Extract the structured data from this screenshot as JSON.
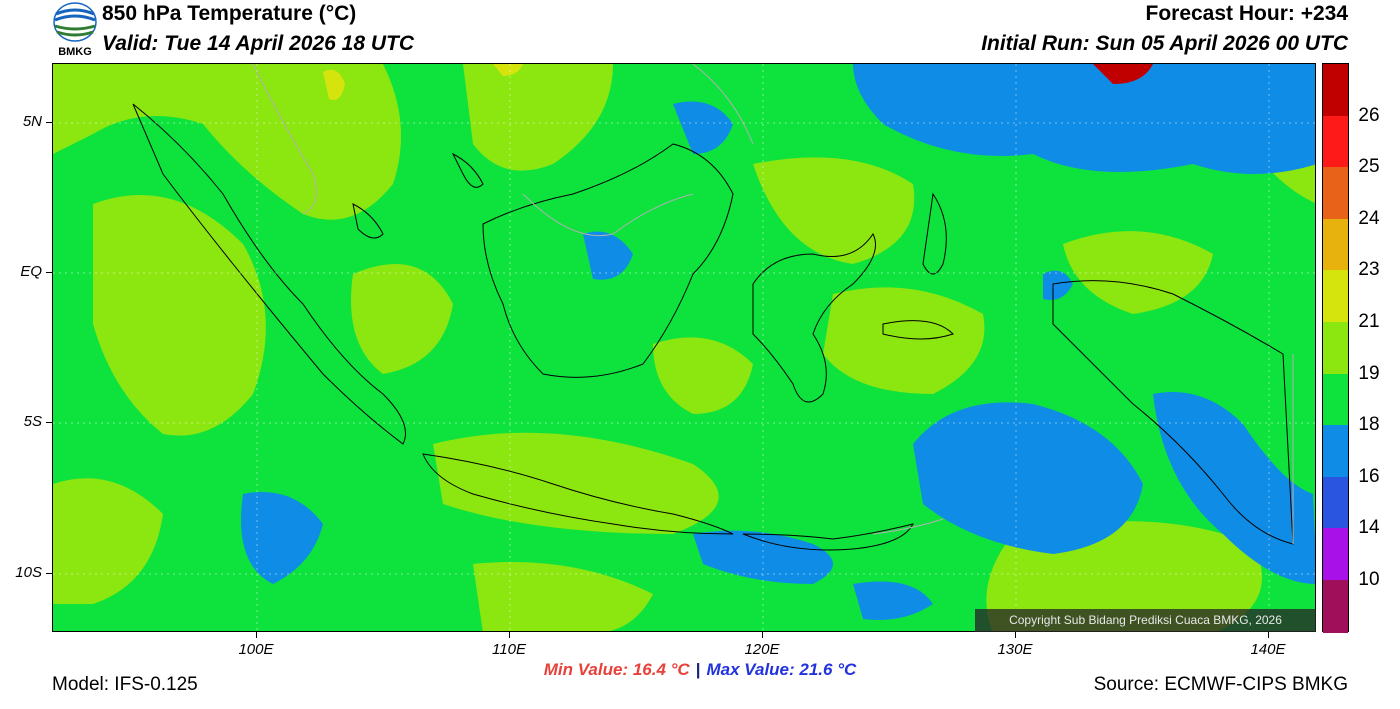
{
  "header": {
    "title": "850 hPa Temperature (°C)",
    "valid": "Valid: Tue 14 April 2026 18 UTC",
    "forecast_hour": "Forecast Hour: +234",
    "initial_run": "Initial Run: Sun 05 April 2026 00 UTC",
    "logo_text": "BMKG"
  },
  "axes": {
    "lat_labels": [
      "5N",
      "EQ",
      "5S",
      "10S"
    ],
    "lon_labels": [
      "100E",
      "110E",
      "120E",
      "130E",
      "140E"
    ]
  },
  "colorbar": {
    "labels": [
      "26",
      "25",
      "24",
      "23",
      "21",
      "19",
      "18",
      "16",
      "14",
      "10"
    ],
    "colors": [
      "#c00000",
      "#ff1a1a",
      "#e8621a",
      "#e8b20e",
      "#d6e40e",
      "#8ce60f",
      "#0de33c",
      "#0f8de6",
      "#2a55e0",
      "#a812e8",
      "#a0105a"
    ]
  },
  "map_colors": {
    "t17": "#0f8de6",
    "t19": "#0de33c",
    "t20": "#8ce60f",
    "t21": "#d6e40e",
    "t26": "#c00000",
    "coast": "#000000",
    "border": "#b0b0b0"
  },
  "copyright": "Copyright Sub Bidang Prediksi Cuaca BMKG, 2026",
  "stats": {
    "min": "Min Value: 16.4 °C",
    "sep": "|",
    "max": "Max Value: 21.6 °C"
  },
  "footer": {
    "model": "Model: IFS-0.125",
    "source": "Source: ECMWF-CIPS BMKG"
  }
}
